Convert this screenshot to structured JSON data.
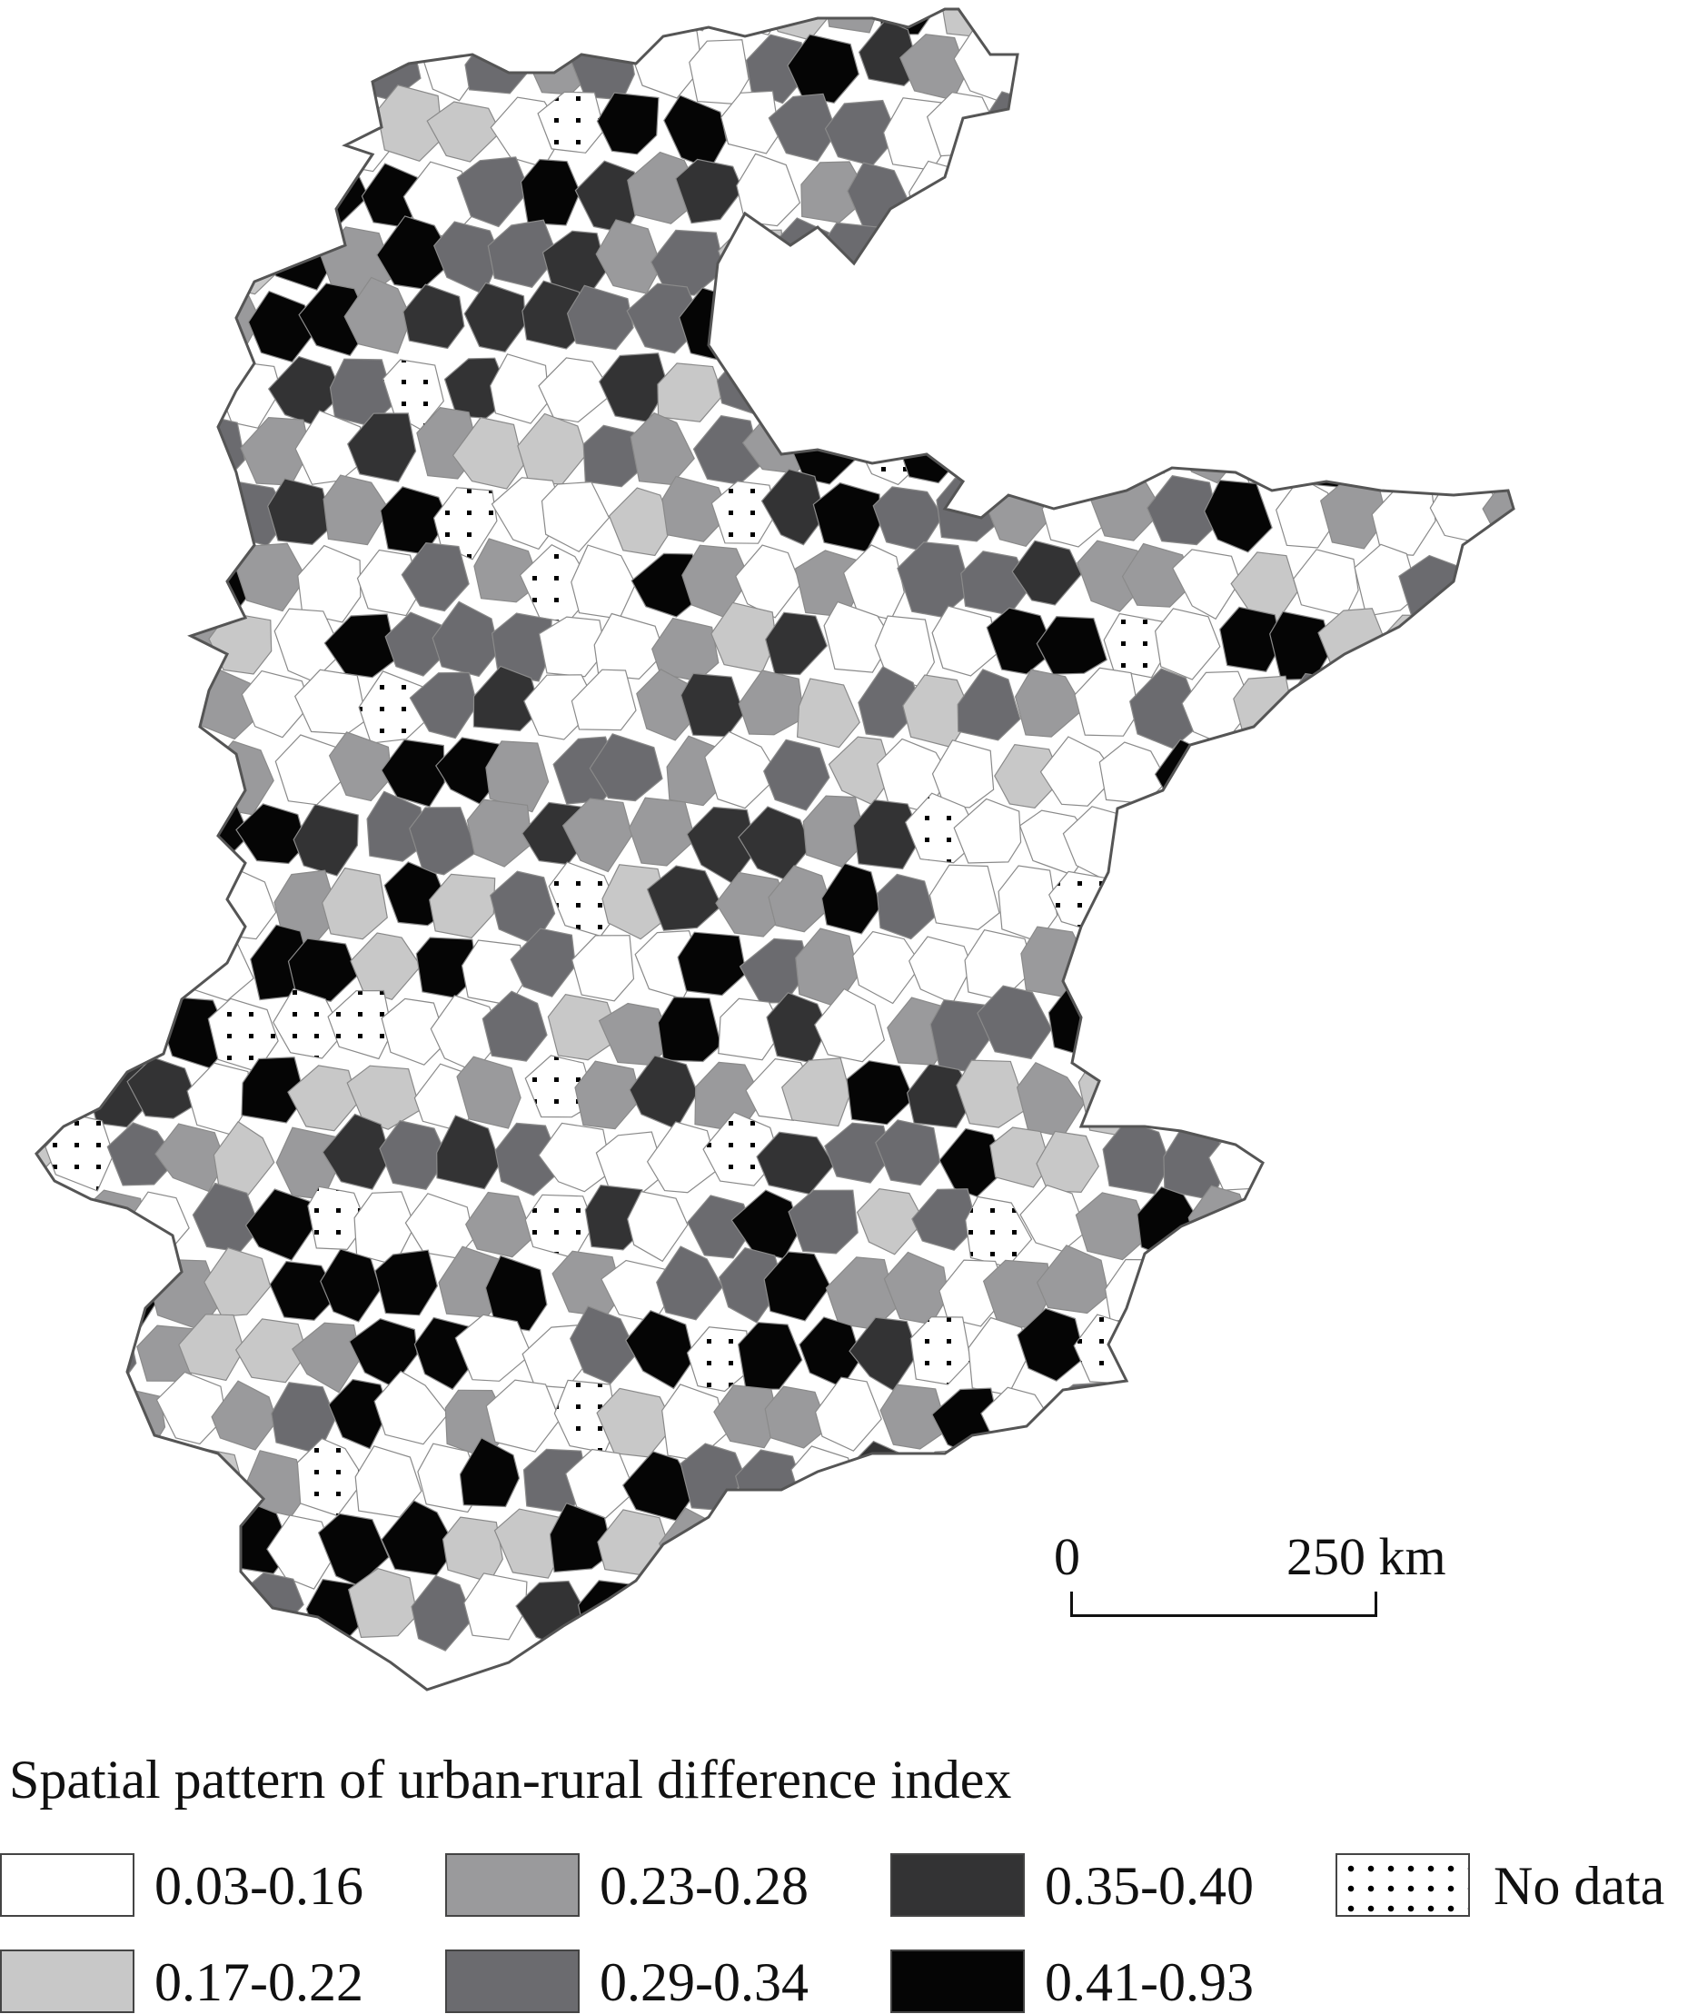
{
  "map": {
    "title": "Spatial pattern of urban-rural difference index",
    "scale_bar": {
      "start_label": "0",
      "end_label": "250 km"
    },
    "legend": [
      {
        "label": "0.03-0.16",
        "color": "#ffffff",
        "pattern": "solid"
      },
      {
        "label": "0.17-0.22",
        "color": "#c8c8c8",
        "pattern": "solid"
      },
      {
        "label": "0.23-0.28",
        "color": "#9a9a9c",
        "pattern": "solid"
      },
      {
        "label": "0.29-0.34",
        "color": "#6b6b6f",
        "pattern": "solid"
      },
      {
        "label": "0.35-0.40",
        "color": "#333334",
        "pattern": "solid"
      },
      {
        "label": "0.41-0.93",
        "color": "#050505",
        "pattern": "solid"
      },
      {
        "label": "No data",
        "color": "#ffffff",
        "pattern": "dots"
      }
    ]
  }
}
